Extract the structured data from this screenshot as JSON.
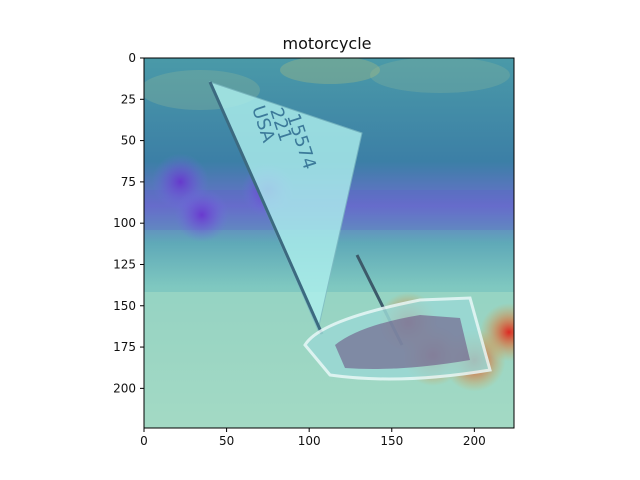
{
  "chart_data": {
    "type": "heatmap",
    "title": "motorcycle",
    "xlabel": "",
    "ylabel": "",
    "xlim": [
      0,
      224
    ],
    "ylim": [
      224,
      0
    ],
    "x_ticks": [
      0,
      50,
      100,
      150,
      200
    ],
    "y_ticks": [
      0,
      25,
      50,
      75,
      100,
      125,
      150,
      175,
      200
    ],
    "grid": false,
    "colormap": "jet",
    "hotspots": [
      {
        "x": 160,
        "y": 160,
        "intensity": 0.85
      },
      {
        "x": 175,
        "y": 180,
        "intensity": 0.9
      },
      {
        "x": 200,
        "y": 183,
        "intensity": 0.95
      },
      {
        "x": 221,
        "y": 166,
        "intensity": 0.8
      },
      {
        "x": 22,
        "y": 75,
        "intensity": 0.75
      },
      {
        "x": 35,
        "y": 95,
        "intensity": 0.65
      },
      {
        "x": 75,
        "y": 80,
        "intensity": 0.6
      }
    ],
    "scene_text": [
      "USA",
      "221",
      "15574"
    ]
  },
  "colors": {
    "background": "#ffffff",
    "sky": "#3f8ea8",
    "sand": "#9fd6c4",
    "sail": "#a8ecec",
    "hot": "#d8241a",
    "cold": "#6a3fd0"
  }
}
